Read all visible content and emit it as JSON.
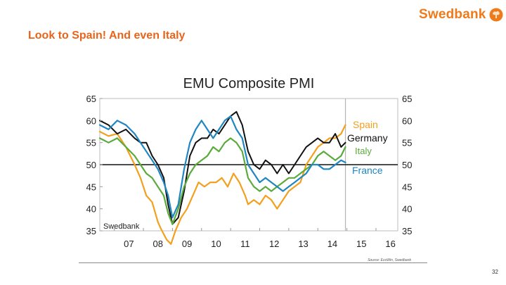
{
  "brand": {
    "name": "Swedbank"
  },
  "slide": {
    "title": "Look to Spain! And even Italy",
    "page_number": "32"
  },
  "colors": {
    "spain": "#f2a01e",
    "germany": "#111111",
    "italy": "#5aaa3c",
    "france": "#1f86c2",
    "accent": "#e8641b"
  },
  "chart_data": {
    "type": "line",
    "title": "EMU Composite PMI",
    "watermark": "Swedbank",
    "source": "Source: EcoWin, Swedbank",
    "x_tick_labels": [
      "07",
      "08",
      "09",
      "10",
      "11",
      "12",
      "13",
      "14",
      "15",
      "16"
    ],
    "y_ticks": [
      35,
      40,
      45,
      50,
      55,
      60,
      65
    ],
    "y_tick_labels": [
      "35",
      "40",
      "45",
      "50",
      "55",
      "60",
      "65"
    ],
    "ylim": [
      35,
      65
    ],
    "xlim": [
      2006.5,
      2016.75
    ],
    "reference_line": 50,
    "marker_x": 2014.95,
    "series": [
      {
        "name": "Spain",
        "color": "#f2a01e",
        "x": [
          2006.5,
          2006.8,
          2007.1,
          2007.4,
          2007.7,
          2007.9,
          2008.1,
          2008.3,
          2008.5,
          2008.6,
          2008.8,
          2008.95,
          2009.1,
          2009.3,
          2009.5,
          2009.7,
          2009.9,
          2010.1,
          2010.3,
          2010.5,
          2010.7,
          2010.9,
          2011.1,
          2011.3,
          2011.5,
          2011.6,
          2011.8,
          2012.0,
          2012.2,
          2012.4,
          2012.6,
          2012.8,
          2013.0,
          2013.2,
          2013.4,
          2013.6,
          2013.8,
          2014.0,
          2014.2,
          2014.4,
          2014.6,
          2014.8,
          2014.95
        ],
        "values": [
          57.5,
          56.5,
          57,
          54,
          50,
          47,
          43,
          41.5,
          37,
          35.5,
          33,
          32,
          35,
          38,
          40,
          43,
          46,
          45,
          46,
          46,
          47,
          45,
          48,
          46,
          43,
          41,
          42,
          41,
          43,
          42,
          40,
          42,
          44,
          45,
          46,
          50,
          52,
          54,
          55,
          56,
          56,
          57,
          59
        ]
      },
      {
        "name": "Germany",
        "color": "#111111",
        "x": [
          2006.5,
          2006.8,
          2007.1,
          2007.4,
          2007.7,
          2007.9,
          2008.1,
          2008.3,
          2008.5,
          2008.7,
          2008.85,
          2009.0,
          2009.2,
          2009.4,
          2009.6,
          2009.8,
          2010.0,
          2010.2,
          2010.4,
          2010.6,
          2010.8,
          2011.0,
          2011.2,
          2011.4,
          2011.6,
          2011.8,
          2012.0,
          2012.2,
          2012.4,
          2012.6,
          2012.8,
          2013.0,
          2013.2,
          2013.4,
          2013.6,
          2013.8,
          2014.0,
          2014.2,
          2014.4,
          2014.6,
          2014.8,
          2014.95
        ],
        "values": [
          60,
          59,
          57,
          58,
          56,
          55,
          55,
          52,
          50,
          47,
          41,
          36.5,
          38,
          44,
          52,
          55,
          56,
          56,
          58,
          57,
          59,
          61,
          62,
          59,
          53,
          50,
          49,
          51,
          50,
          48,
          50,
          48,
          50,
          52,
          54,
          55,
          56,
          55,
          55,
          57,
          54,
          55
        ]
      },
      {
        "name": "Italy",
        "color": "#5aaa3c",
        "x": [
          2006.5,
          2006.8,
          2007.1,
          2007.4,
          2007.7,
          2007.9,
          2008.1,
          2008.3,
          2008.5,
          2008.7,
          2008.85,
          2009.0,
          2009.2,
          2009.4,
          2009.6,
          2009.8,
          2010.0,
          2010.2,
          2010.4,
          2010.6,
          2010.8,
          2011.0,
          2011.2,
          2011.4,
          2011.6,
          2011.8,
          2012.0,
          2012.2,
          2012.4,
          2012.6,
          2012.8,
          2013.0,
          2013.2,
          2013.4,
          2013.6,
          2013.8,
          2014.0,
          2014.2,
          2014.4,
          2014.6,
          2014.8,
          2014.95
        ],
        "values": [
          56,
          55,
          56,
          54,
          52,
          50,
          48,
          47,
          45,
          43,
          39,
          36.5,
          40,
          45,
          48,
          50,
          51,
          52,
          54,
          53,
          55,
          56,
          55,
          53,
          47,
          45,
          44,
          45,
          44,
          45,
          46,
          47,
          47,
          48,
          49,
          50,
          52,
          53,
          52,
          51,
          52,
          54
        ]
      },
      {
        "name": "France",
        "color": "#1f86c2",
        "x": [
          2006.5,
          2006.8,
          2007.1,
          2007.4,
          2007.7,
          2007.9,
          2008.1,
          2008.3,
          2008.5,
          2008.7,
          2008.85,
          2009.0,
          2009.2,
          2009.4,
          2009.6,
          2009.8,
          2010.0,
          2010.2,
          2010.4,
          2010.6,
          2010.8,
          2011.0,
          2011.2,
          2011.4,
          2011.6,
          2011.8,
          2012.0,
          2012.2,
          2012.4,
          2012.6,
          2012.8,
          2013.0,
          2013.2,
          2013.4,
          2013.6,
          2013.8,
          2014.0,
          2014.2,
          2014.4,
          2014.6,
          2014.8,
          2014.95
        ],
        "values": [
          59,
          58,
          60,
          59,
          57,
          55,
          53,
          51,
          49,
          46,
          43,
          38,
          41,
          49,
          55,
          58,
          60,
          58,
          56,
          58,
          60,
          61,
          58,
          56,
          50,
          48,
          46,
          47,
          46,
          45,
          44,
          45,
          46,
          47,
          48,
          50,
          50,
          49,
          49,
          50,
          51,
          50.5
        ]
      }
    ],
    "legend_labels": [
      "Spain",
      "Germany",
      "Italy",
      "France"
    ]
  }
}
